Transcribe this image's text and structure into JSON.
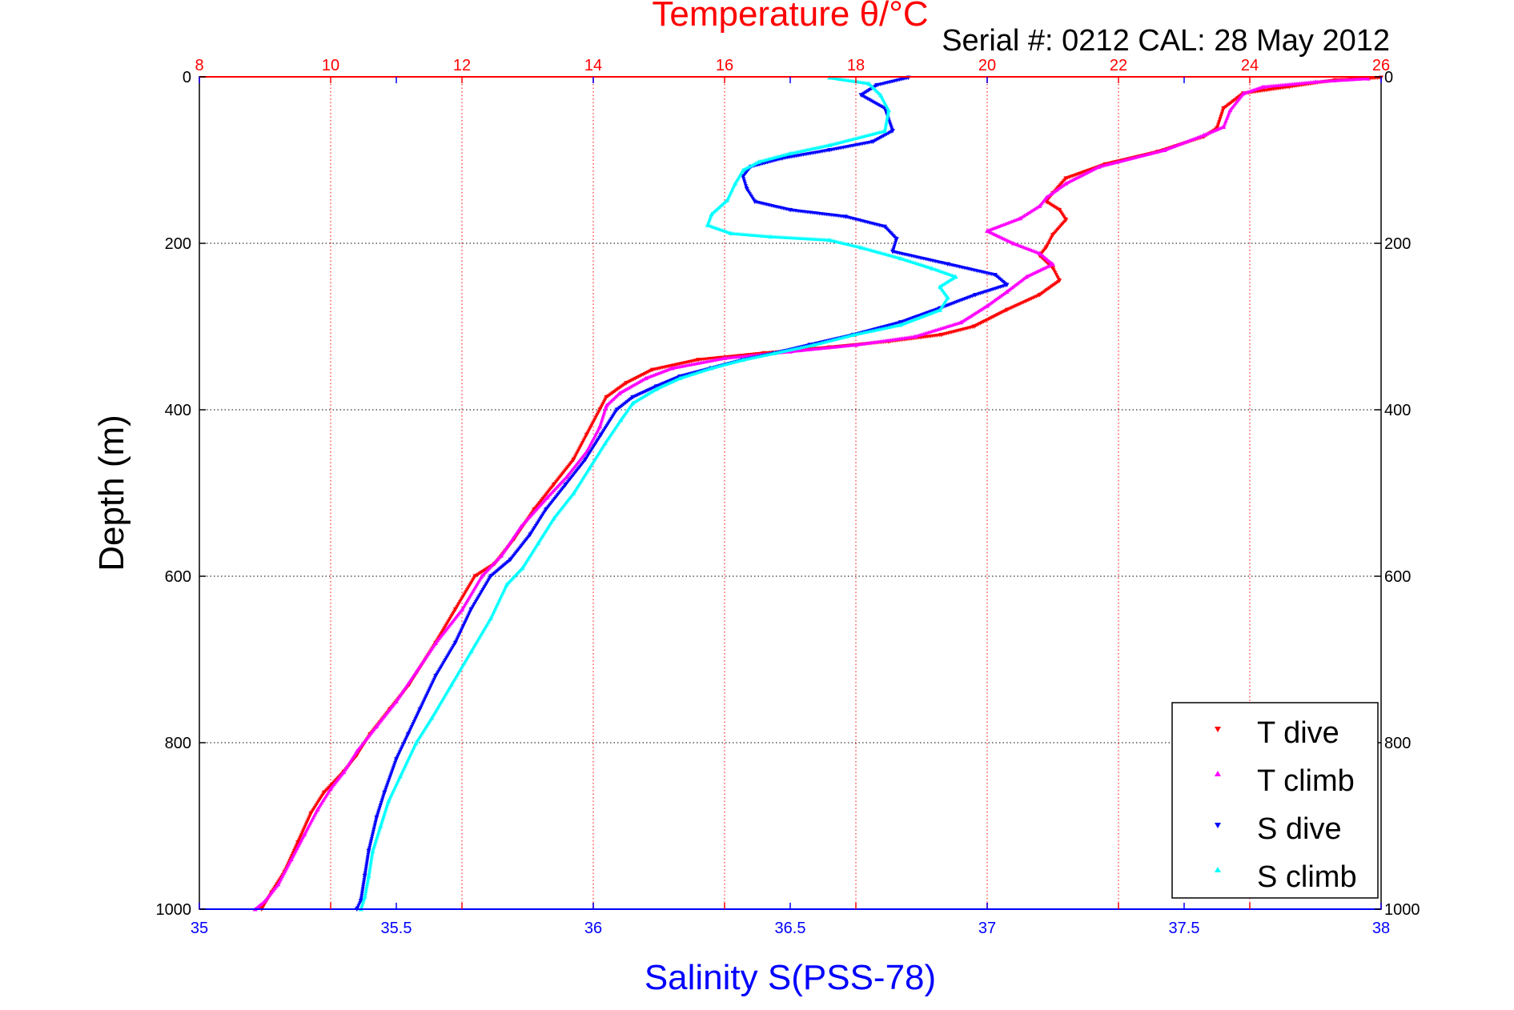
{
  "chart_data": {
    "type": "scatter",
    "title": "Temperature θ/°C",
    "subtitle": "Serial #: 0212  CAL: 28 May 2012",
    "xlabel": "Salinity S(PSS-78)",
    "ylabel": "Depth (m)",
    "x_bottom": {
      "label": "Salinity S(PSS-78)",
      "lim": [
        35,
        38
      ],
      "ticks": [
        "35",
        "35.5",
        "36",
        "36.5",
        "37",
        "37.5",
        "38"
      ],
      "color": "#0000ff"
    },
    "x_top": {
      "label": "Temperature θ/°C",
      "lim": [
        8,
        26
      ],
      "ticks": [
        "8",
        "10",
        "12",
        "14",
        "16",
        "18",
        "20",
        "22",
        "24",
        "26"
      ],
      "color": "#ff0000"
    },
    "y": {
      "label": "Depth (m)",
      "lim": [
        0,
        1000
      ],
      "reversed": true,
      "ticks": [
        "0",
        "200",
        "400",
        "600",
        "800",
        "1000"
      ]
    },
    "grid": true,
    "legend_position": "bottom-right",
    "series": [
      {
        "name": "T dive",
        "axis": "temperature",
        "color": "#ff0000",
        "marker": "triangle-down",
        "points": [
          [
            26.0,
            1
          ],
          [
            25.3,
            4
          ],
          [
            24.6,
            12
          ],
          [
            23.9,
            20
          ],
          [
            23.6,
            38
          ],
          [
            23.5,
            62
          ],
          [
            23.3,
            72
          ],
          [
            22.6,
            90
          ],
          [
            21.8,
            105
          ],
          [
            21.2,
            122
          ],
          [
            21.0,
            140
          ],
          [
            20.9,
            150
          ],
          [
            21.1,
            160
          ],
          [
            21.2,
            172
          ],
          [
            21.0,
            190
          ],
          [
            20.9,
            205
          ],
          [
            20.8,
            215
          ],
          [
            21.0,
            230
          ],
          [
            21.1,
            245
          ],
          [
            20.8,
            262
          ],
          [
            20.3,
            280
          ],
          [
            19.8,
            300
          ],
          [
            19.3,
            310
          ],
          [
            18.5,
            318
          ],
          [
            17.6,
            325
          ],
          [
            16.6,
            332
          ],
          [
            15.6,
            340
          ],
          [
            14.9,
            352
          ],
          [
            14.5,
            368
          ],
          [
            14.2,
            385
          ],
          [
            14.1,
            400
          ],
          [
            13.9,
            430
          ],
          [
            13.7,
            460
          ],
          [
            13.4,
            490
          ],
          [
            13.1,
            520
          ],
          [
            12.8,
            555
          ],
          [
            12.5,
            585
          ],
          [
            12.2,
            600
          ],
          [
            11.9,
            640
          ],
          [
            11.6,
            680
          ],
          [
            11.2,
            730
          ],
          [
            10.9,
            760
          ],
          [
            10.6,
            790
          ],
          [
            10.4,
            815
          ],
          [
            10.2,
            835
          ],
          [
            9.9,
            860
          ],
          [
            9.7,
            885
          ],
          [
            9.5,
            920
          ],
          [
            9.3,
            955
          ],
          [
            9.1,
            980
          ],
          [
            8.95,
            1000
          ]
        ]
      },
      {
        "name": "T climb",
        "axis": "temperature",
        "color": "#ff00ff",
        "marker": "triangle-up",
        "points": [
          [
            25.8,
            2
          ],
          [
            25.0,
            6
          ],
          [
            24.2,
            12
          ],
          [
            23.9,
            20
          ],
          [
            23.7,
            40
          ],
          [
            23.6,
            60
          ],
          [
            23.3,
            70
          ],
          [
            22.7,
            88
          ],
          [
            21.7,
            108
          ],
          [
            21.2,
            128
          ],
          [
            20.9,
            145
          ],
          [
            20.8,
            155
          ],
          [
            20.5,
            170
          ],
          [
            20.0,
            185
          ],
          [
            20.4,
            200
          ],
          [
            20.8,
            212
          ],
          [
            21.0,
            225
          ],
          [
            20.6,
            240
          ],
          [
            20.3,
            258
          ],
          [
            20.0,
            275
          ],
          [
            19.6,
            295
          ],
          [
            18.9,
            312
          ],
          [
            18.0,
            322
          ],
          [
            17.0,
            330
          ],
          [
            16.0,
            338
          ],
          [
            15.2,
            350
          ],
          [
            14.8,
            362
          ],
          [
            14.4,
            380
          ],
          [
            14.2,
            395
          ],
          [
            14.1,
            420
          ],
          [
            13.9,
            450
          ],
          [
            13.6,
            480
          ],
          [
            13.3,
            505
          ],
          [
            12.9,
            540
          ],
          [
            12.6,
            575
          ],
          [
            12.3,
            600
          ],
          [
            12.0,
            640
          ],
          [
            11.6,
            680
          ],
          [
            11.3,
            715
          ],
          [
            11.0,
            750
          ],
          [
            10.7,
            780
          ],
          [
            10.4,
            810
          ],
          [
            10.2,
            835
          ],
          [
            10.0,
            855
          ],
          [
            9.8,
            880
          ],
          [
            9.6,
            910
          ],
          [
            9.4,
            940
          ],
          [
            9.2,
            970
          ],
          [
            9.0,
            990
          ],
          [
            8.85,
            1000
          ]
        ]
      },
      {
        "name": "S dive",
        "axis": "salinity",
        "color": "#0000ff",
        "marker": "triangle-down",
        "points": [
          [
            36.8,
            1
          ],
          [
            36.72,
            10
          ],
          [
            36.68,
            22
          ],
          [
            36.74,
            38
          ],
          [
            36.76,
            65
          ],
          [
            36.71,
            78
          ],
          [
            36.6,
            88
          ],
          [
            36.48,
            98
          ],
          [
            36.4,
            108
          ],
          [
            36.38,
            120
          ],
          [
            36.39,
            135
          ],
          [
            36.41,
            150
          ],
          [
            36.5,
            160
          ],
          [
            36.64,
            168
          ],
          [
            36.74,
            180
          ],
          [
            36.77,
            195
          ],
          [
            36.76,
            210
          ],
          [
            36.9,
            225
          ],
          [
            37.02,
            238
          ],
          [
            37.05,
            250
          ],
          [
            36.97,
            262
          ],
          [
            36.88,
            278
          ],
          [
            36.78,
            295
          ],
          [
            36.66,
            310
          ],
          [
            36.55,
            322
          ],
          [
            36.46,
            332
          ],
          [
            36.38,
            340
          ],
          [
            36.3,
            350
          ],
          [
            36.22,
            360
          ],
          [
            36.16,
            372
          ],
          [
            36.1,
            385
          ],
          [
            36.06,
            400
          ],
          [
            36.02,
            430
          ],
          [
            35.98,
            460
          ],
          [
            35.93,
            490
          ],
          [
            35.88,
            520
          ],
          [
            35.84,
            550
          ],
          [
            35.79,
            580
          ],
          [
            35.74,
            600
          ],
          [
            35.69,
            640
          ],
          [
            35.65,
            680
          ],
          [
            35.6,
            720
          ],
          [
            35.56,
            760
          ],
          [
            35.53,
            790
          ],
          [
            35.5,
            820
          ],
          [
            35.47,
            860
          ],
          [
            35.45,
            890
          ],
          [
            35.43,
            930
          ],
          [
            35.42,
            960
          ],
          [
            35.41,
            990
          ],
          [
            35.4,
            1000
          ]
        ]
      },
      {
        "name": "S climb",
        "axis": "salinity",
        "color": "#00ffff",
        "marker": "triangle-up",
        "points": [
          [
            36.6,
            1
          ],
          [
            36.7,
            8
          ],
          [
            36.73,
            22
          ],
          [
            36.75,
            40
          ],
          [
            36.74,
            65
          ],
          [
            36.6,
            82
          ],
          [
            36.5,
            92
          ],
          [
            36.42,
            102
          ],
          [
            36.38,
            112
          ],
          [
            36.36,
            128
          ],
          [
            36.34,
            148
          ],
          [
            36.3,
            165
          ],
          [
            36.29,
            178
          ],
          [
            36.35,
            188
          ],
          [
            36.45,
            192
          ],
          [
            36.6,
            196
          ],
          [
            36.68,
            205
          ],
          [
            36.78,
            218
          ],
          [
            36.86,
            230
          ],
          [
            36.92,
            240
          ],
          [
            36.88,
            252
          ],
          [
            36.9,
            265
          ],
          [
            36.88,
            280
          ],
          [
            36.78,
            298
          ],
          [
            36.66,
            310
          ],
          [
            36.56,
            322
          ],
          [
            36.46,
            332
          ],
          [
            36.38,
            340
          ],
          [
            36.3,
            350
          ],
          [
            36.22,
            362
          ],
          [
            36.16,
            375
          ],
          [
            36.1,
            392
          ],
          [
            36.07,
            412
          ],
          [
            36.03,
            440
          ],
          [
            35.99,
            470
          ],
          [
            35.95,
            500
          ],
          [
            35.9,
            530
          ],
          [
            35.86,
            560
          ],
          [
            35.82,
            590
          ],
          [
            35.78,
            610
          ],
          [
            35.74,
            650
          ],
          [
            35.69,
            690
          ],
          [
            35.64,
            730
          ],
          [
            35.59,
            770
          ],
          [
            35.55,
            800
          ],
          [
            35.51,
            840
          ],
          [
            35.48,
            870
          ],
          [
            35.46,
            900
          ],
          [
            35.44,
            930
          ],
          [
            35.43,
            960
          ],
          [
            35.42,
            985
          ],
          [
            35.41,
            1000
          ]
        ]
      }
    ]
  }
}
